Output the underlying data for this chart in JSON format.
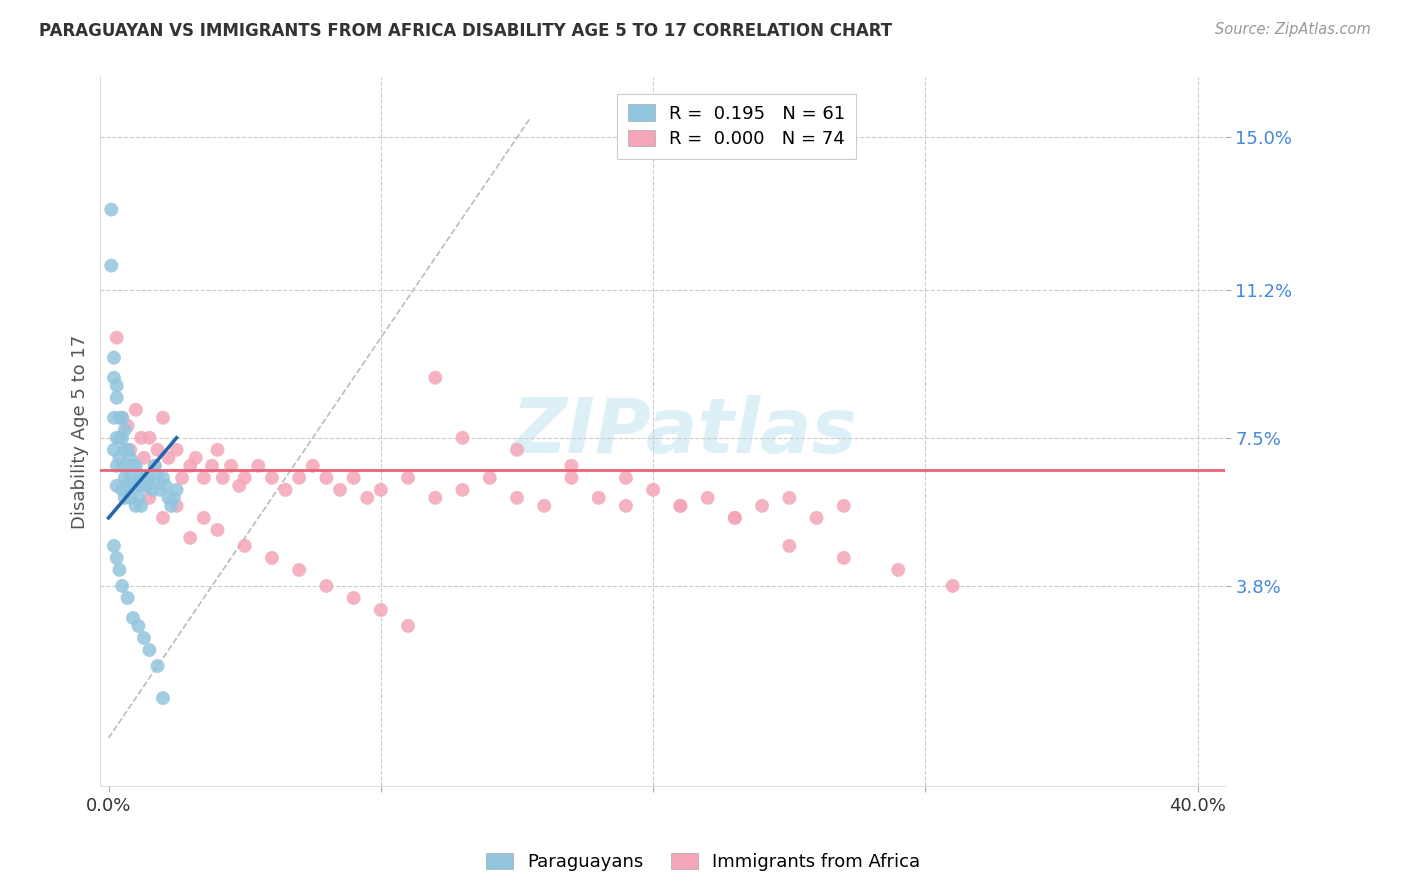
{
  "title": "PARAGUAYAN VS IMMIGRANTS FROM AFRICA DISABILITY AGE 5 TO 17 CORRELATION CHART",
  "source": "Source: ZipAtlas.com",
  "ylabel": "Disability Age 5 to 17",
  "ytick_vals": [
    0.038,
    0.075,
    0.112,
    0.15
  ],
  "ytick_labels": [
    "3.8%",
    "7.5%",
    "11.2%",
    "15.0%"
  ],
  "xtick_vals": [
    0.0,
    0.1,
    0.2,
    0.3,
    0.4
  ],
  "xtick_labels": [
    "0.0%",
    "",
    "",
    "",
    "40.0%"
  ],
  "xlim": [
    -0.003,
    0.41
  ],
  "ylim": [
    -0.012,
    0.165
  ],
  "blue_color": "#92c5de",
  "pink_color": "#f4a6b8",
  "blue_line_color": "#2166ac",
  "pink_line_color": "#e8637a",
  "blue_r": "0.195",
  "blue_n": "61",
  "pink_r": "0.000",
  "pink_n": "74",
  "paraguayan_x": [
    0.001,
    0.001,
    0.002,
    0.002,
    0.002,
    0.002,
    0.003,
    0.003,
    0.003,
    0.003,
    0.003,
    0.004,
    0.004,
    0.004,
    0.005,
    0.005,
    0.005,
    0.005,
    0.006,
    0.006,
    0.006,
    0.006,
    0.007,
    0.007,
    0.007,
    0.008,
    0.008,
    0.008,
    0.009,
    0.009,
    0.01,
    0.01,
    0.01,
    0.011,
    0.011,
    0.012,
    0.012,
    0.013,
    0.014,
    0.015,
    0.016,
    0.017,
    0.018,
    0.019,
    0.02,
    0.021,
    0.022,
    0.023,
    0.024,
    0.025,
    0.002,
    0.003,
    0.004,
    0.005,
    0.007,
    0.009,
    0.011,
    0.013,
    0.015,
    0.018,
    0.02
  ],
  "paraguayan_y": [
    0.132,
    0.118,
    0.095,
    0.09,
    0.08,
    0.072,
    0.088,
    0.085,
    0.075,
    0.068,
    0.063,
    0.08,
    0.075,
    0.07,
    0.08,
    0.075,
    0.068,
    0.062,
    0.077,
    0.072,
    0.065,
    0.06,
    0.072,
    0.068,
    0.063,
    0.07,
    0.065,
    0.06,
    0.068,
    0.063,
    0.068,
    0.063,
    0.058,
    0.065,
    0.06,
    0.063,
    0.058,
    0.065,
    0.063,
    0.065,
    0.062,
    0.068,
    0.065,
    0.062,
    0.065,
    0.063,
    0.06,
    0.058,
    0.06,
    0.062,
    0.048,
    0.045,
    0.042,
    0.038,
    0.035,
    0.03,
    0.028,
    0.025,
    0.022,
    0.018,
    0.01
  ],
  "africa_x": [
    0.003,
    0.005,
    0.007,
    0.008,
    0.01,
    0.012,
    0.013,
    0.015,
    0.017,
    0.018,
    0.02,
    0.022,
    0.025,
    0.027,
    0.03,
    0.032,
    0.035,
    0.038,
    0.04,
    0.042,
    0.045,
    0.048,
    0.05,
    0.055,
    0.06,
    0.065,
    0.07,
    0.075,
    0.08,
    0.085,
    0.09,
    0.095,
    0.1,
    0.11,
    0.12,
    0.13,
    0.14,
    0.15,
    0.16,
    0.17,
    0.18,
    0.19,
    0.2,
    0.21,
    0.22,
    0.23,
    0.24,
    0.25,
    0.26,
    0.27,
    0.015,
    0.02,
    0.025,
    0.03,
    0.035,
    0.04,
    0.05,
    0.06,
    0.07,
    0.08,
    0.09,
    0.1,
    0.11,
    0.12,
    0.13,
    0.15,
    0.17,
    0.19,
    0.21,
    0.23,
    0.25,
    0.27,
    0.29,
    0.31
  ],
  "africa_y": [
    0.1,
    0.08,
    0.078,
    0.072,
    0.082,
    0.075,
    0.07,
    0.075,
    0.068,
    0.072,
    0.08,
    0.07,
    0.072,
    0.065,
    0.068,
    0.07,
    0.065,
    0.068,
    0.072,
    0.065,
    0.068,
    0.063,
    0.065,
    0.068,
    0.065,
    0.062,
    0.065,
    0.068,
    0.065,
    0.062,
    0.065,
    0.06,
    0.062,
    0.065,
    0.06,
    0.062,
    0.065,
    0.06,
    0.058,
    0.065,
    0.06,
    0.058,
    0.062,
    0.058,
    0.06,
    0.055,
    0.058,
    0.06,
    0.055,
    0.058,
    0.06,
    0.055,
    0.058,
    0.05,
    0.055,
    0.052,
    0.048,
    0.045,
    0.042,
    0.038,
    0.035,
    0.032,
    0.028,
    0.09,
    0.075,
    0.072,
    0.068,
    0.065,
    0.058,
    0.055,
    0.048,
    0.045,
    0.042,
    0.038
  ],
  "pink_hline_y": 0.067,
  "blue_line_x0": 0.0,
  "blue_line_x1": 0.025,
  "blue_line_y0": 0.055,
  "blue_line_y1": 0.075
}
